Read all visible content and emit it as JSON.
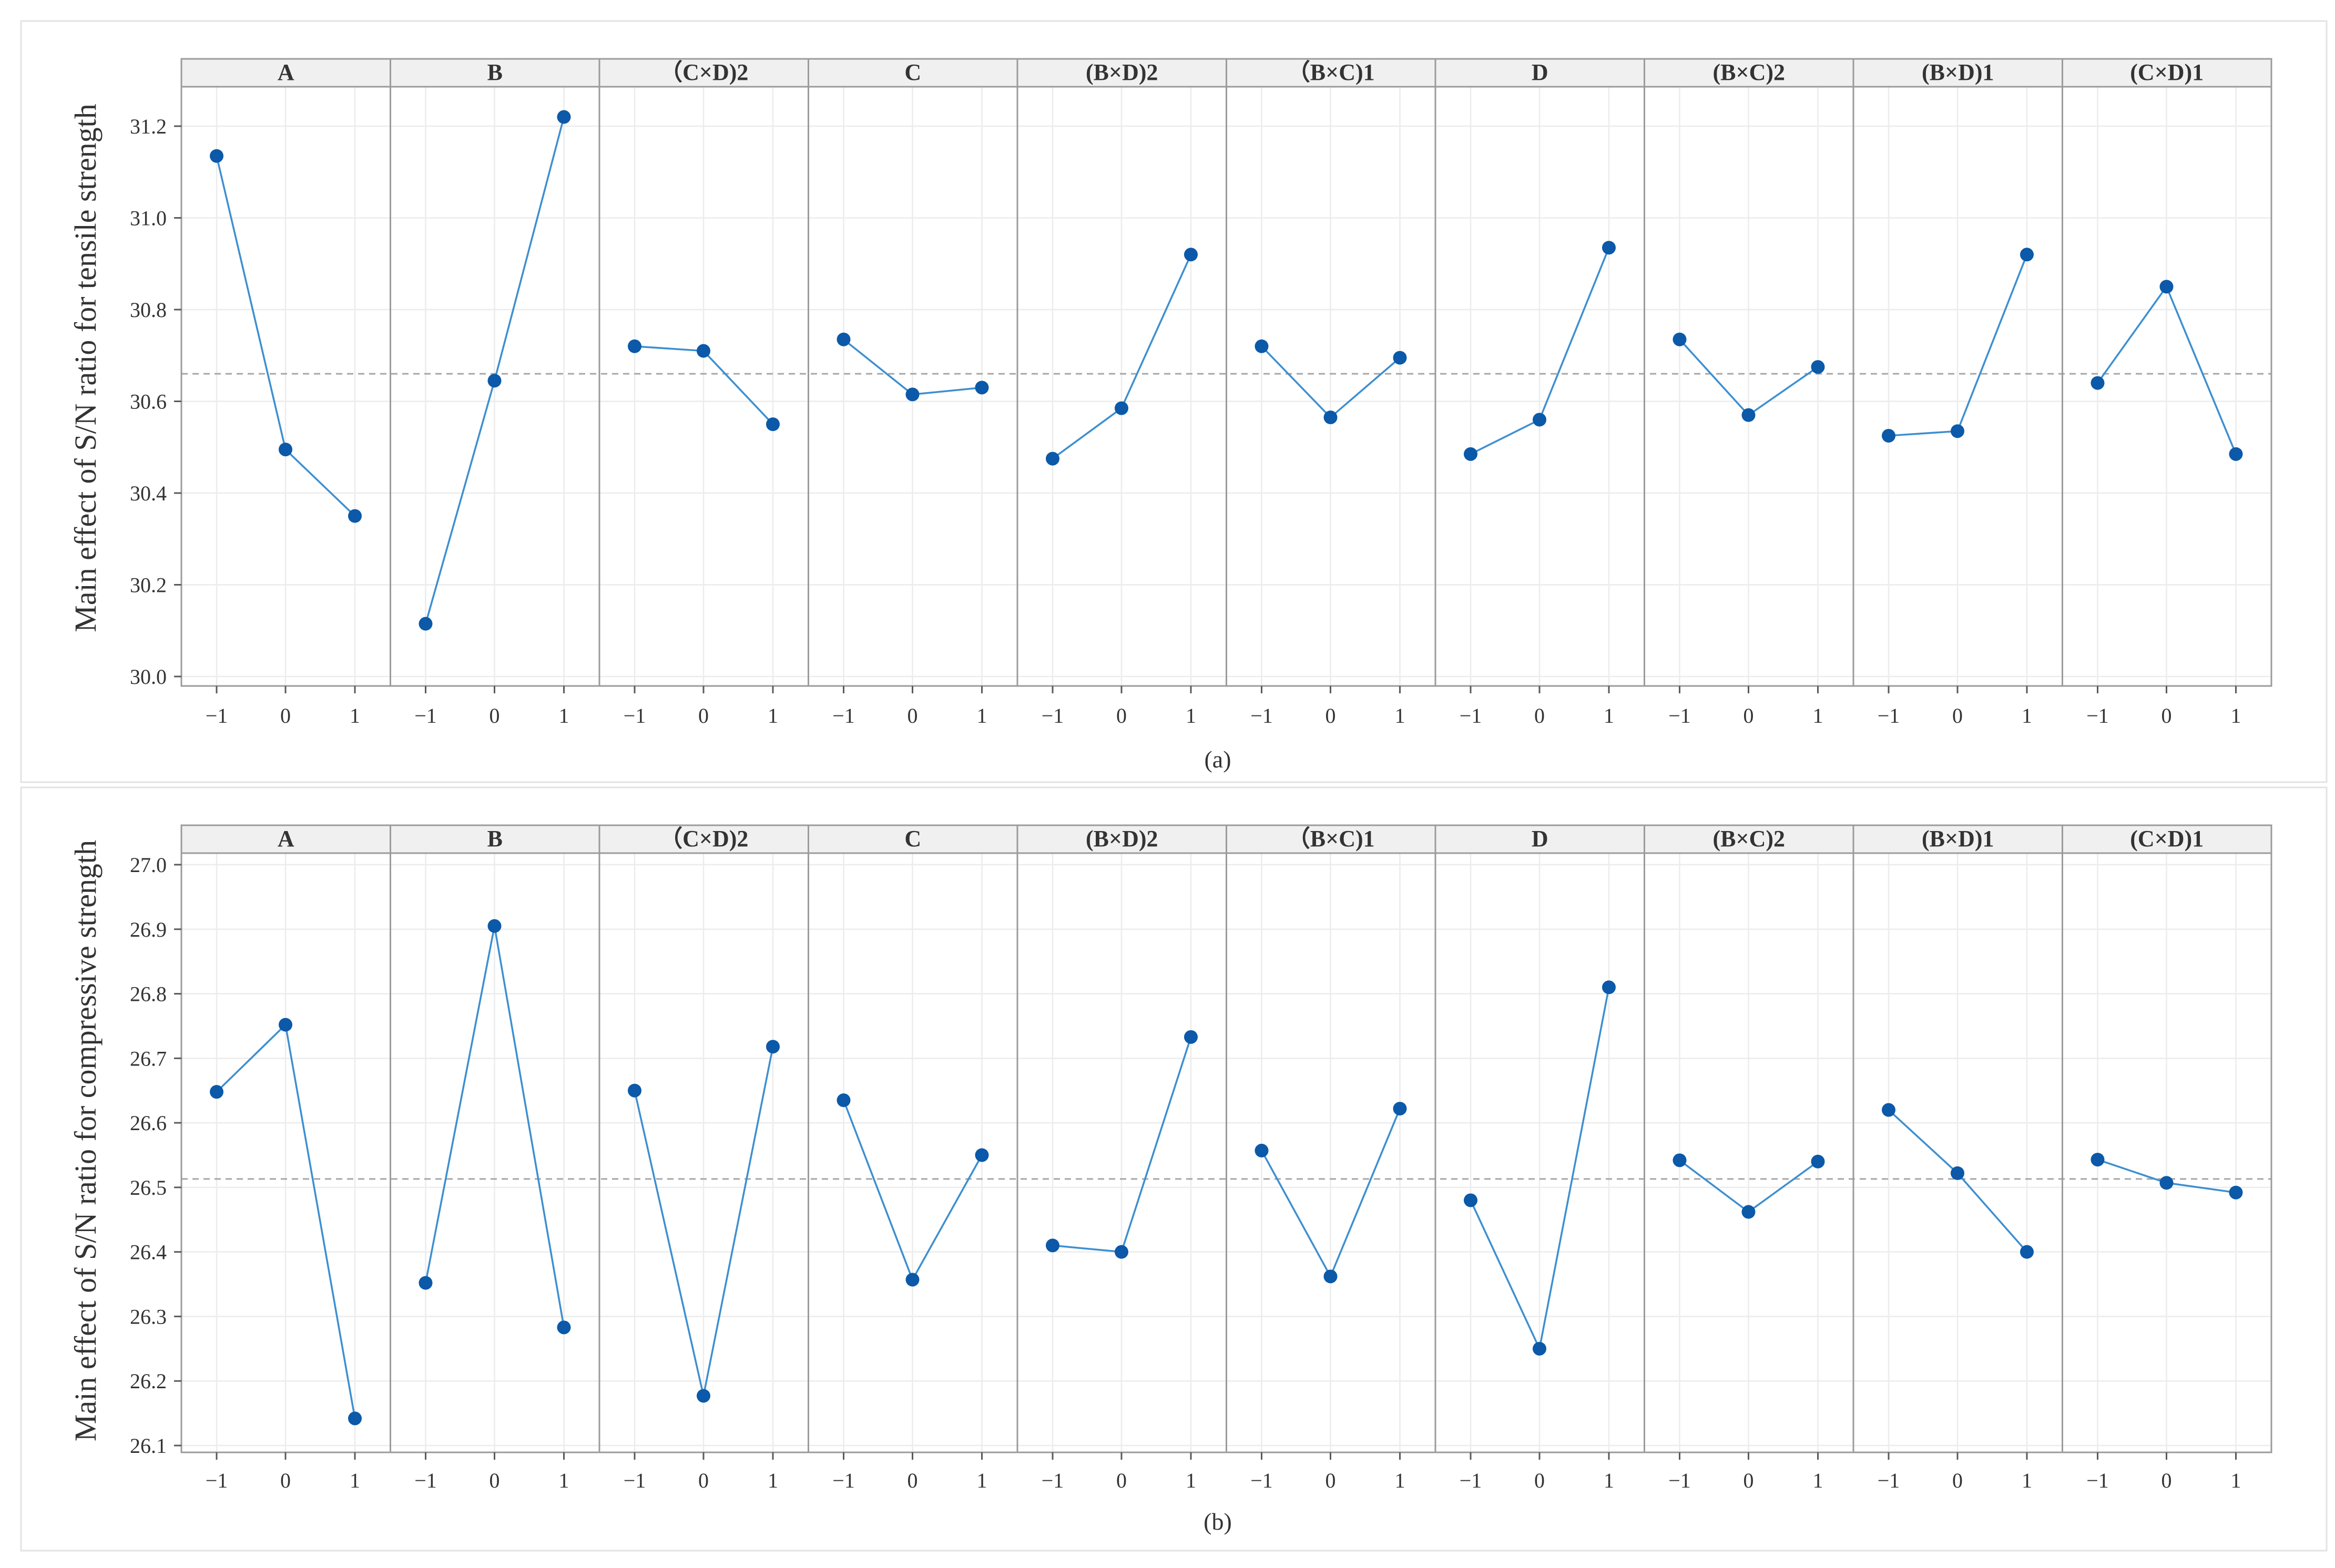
{
  "chart_data": [
    {
      "type": "line",
      "caption": "(a)",
      "ylabel": "Main effect of S/N ratio for tensile strength",
      "ylim": [
        30.0,
        31.2
      ],
      "yticks": [
        "30.0",
        "30.2",
        "30.4",
        "30.6",
        "30.8",
        "31.0",
        "31.2"
      ],
      "ytick_values": [
        30.0,
        30.2,
        30.4,
        30.6,
        30.8,
        31.0,
        31.2
      ],
      "x": [
        "−1",
        "0",
        "1"
      ],
      "reference_mean": 30.66,
      "grid": true,
      "panels": [
        {
          "name": "A",
          "values": [
            31.135,
            30.495,
            30.35
          ]
        },
        {
          "name": "B",
          "values": [
            30.115,
            30.645,
            31.22
          ]
        },
        {
          "name": "（C×D)2",
          "values": [
            30.72,
            30.71,
            30.55
          ]
        },
        {
          "name": "C",
          "values": [
            30.735,
            30.615,
            30.63
          ]
        },
        {
          "name": "(B×D)2",
          "values": [
            30.475,
            30.585,
            30.92
          ]
        },
        {
          "name": "（B×C)1",
          "values": [
            30.72,
            30.565,
            30.695
          ]
        },
        {
          "name": "D",
          "values": [
            30.485,
            30.56,
            30.935
          ]
        },
        {
          "name": "(B×C)2",
          "values": [
            30.735,
            30.57,
            30.675
          ]
        },
        {
          "name": "(B×D)1",
          "values": [
            30.525,
            30.535,
            30.92
          ]
        },
        {
          "name": "(C×D)1",
          "values": [
            30.64,
            30.85,
            30.485
          ]
        }
      ]
    },
    {
      "type": "line",
      "caption": "(b)",
      "ylabel": "Main effect of S/N ratio for compressive strength",
      "ylim": [
        26.1,
        27.0
      ],
      "yticks": [
        "26.1",
        "26.2",
        "26.3",
        "26.4",
        "26.5",
        "26.6",
        "26.7",
        "26.8",
        "26.9",
        "27.0"
      ],
      "ytick_values": [
        26.1,
        26.2,
        26.3,
        26.4,
        26.5,
        26.6,
        26.7,
        26.8,
        26.9,
        27.0
      ],
      "x": [
        "−1",
        "0",
        "1"
      ],
      "reference_mean": 26.513,
      "grid": true,
      "panels": [
        {
          "name": "A",
          "values": [
            26.648,
            26.752,
            26.142
          ]
        },
        {
          "name": "B",
          "values": [
            26.352,
            26.905,
            26.283
          ]
        },
        {
          "name": "（C×D)2",
          "values": [
            26.65,
            26.177,
            26.718
          ]
        },
        {
          "name": "C",
          "values": [
            26.635,
            26.357,
            26.55
          ]
        },
        {
          "name": "(B×D)2",
          "values": [
            26.41,
            26.4,
            26.733
          ]
        },
        {
          "name": "（B×C)1",
          "values": [
            26.557,
            26.362,
            26.622
          ]
        },
        {
          "name": "D",
          "values": [
            26.48,
            26.25,
            26.81
          ]
        },
        {
          "name": "(B×C)2",
          "values": [
            26.542,
            26.462,
            26.54
          ]
        },
        {
          "name": "(B×D)1",
          "values": [
            26.62,
            26.522,
            26.4
          ]
        },
        {
          "name": "(C×D)1",
          "values": [
            26.543,
            26.507,
            26.492
          ]
        }
      ]
    }
  ]
}
